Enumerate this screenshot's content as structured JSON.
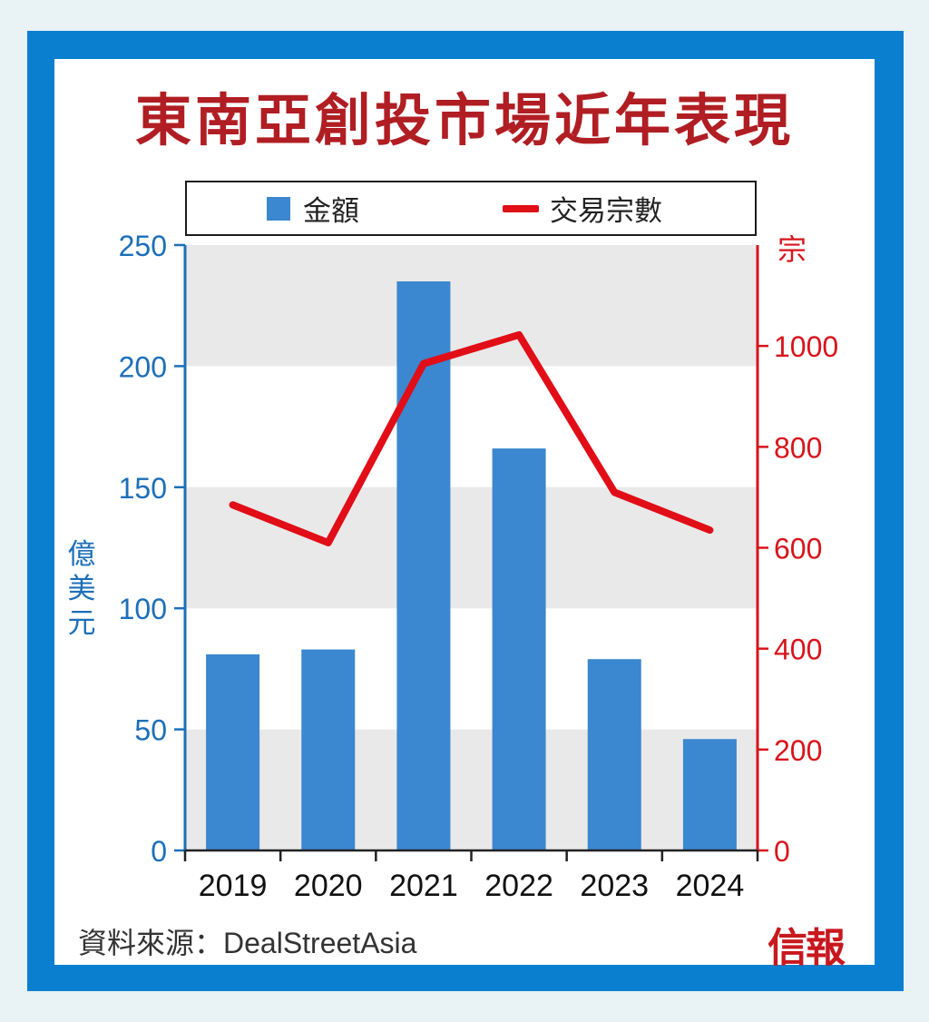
{
  "title": "東南亞創投市場近年表現",
  "source": "資料來源：DealStreetAsia",
  "logo": "信報",
  "colors": {
    "frame": "#0a7fd0",
    "bar": "#3b87d0",
    "line": "#e10d17",
    "title": "#b01e23",
    "left_axis": "#1c6fb8",
    "right_axis": "#d8141b",
    "band": "#e9e9e9"
  },
  "chart_data": {
    "type": "bar",
    "categories": [
      "2019",
      "2020",
      "2021",
      "2022",
      "2023",
      "2024"
    ],
    "series": [
      {
        "name": "金額",
        "type": "bar",
        "axis": "left",
        "values": [
          81,
          83,
          235,
          166,
          79,
          46
        ]
      },
      {
        "name": "交易宗數",
        "type": "line",
        "axis": "right",
        "values": [
          685,
          610,
          965,
          1022,
          710,
          635
        ]
      }
    ],
    "ylabel": "億美元",
    "ylabel_right": "宗",
    "ylim": [
      0,
      250
    ],
    "ylim_right": [
      0,
      1200
    ],
    "yticks": [
      "0",
      "50",
      "100",
      "150",
      "200",
      "250"
    ],
    "yticks_right": [
      "0",
      "200",
      "400",
      "600",
      "800",
      "1000"
    ],
    "grid": "alternating horizontal bands",
    "legend": "top"
  }
}
